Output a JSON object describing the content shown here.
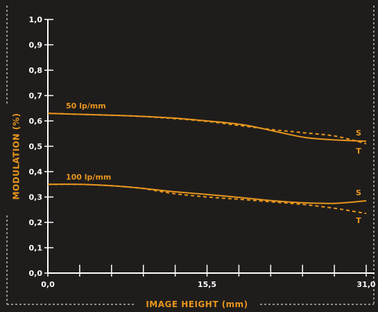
{
  "chart_data": {
    "type": "line",
    "xlabel": "IMAGE HEIGHT (mm)",
    "ylabel": "MODULATION (%)",
    "xlim": [
      0,
      31
    ],
    "ylim": [
      0,
      1
    ],
    "x_tick_labels": [
      "0,0",
      "15,5",
      "31,0"
    ],
    "x_tick_values": [
      0,
      15.5,
      31
    ],
    "x_minor_tick_count": 10,
    "y_tick_labels": [
      "0,0",
      "0,1",
      "0,2",
      "0,3",
      "0,4",
      "0,5",
      "0,6",
      "0,7",
      "0,8",
      "0,9",
      "1,0"
    ],
    "y_tick_values": [
      0,
      0.1,
      0.2,
      0.3,
      0.4,
      0.5,
      0.6,
      0.7,
      0.8,
      0.9,
      1.0
    ],
    "grid": false,
    "colors": {
      "background": "#1f1d1c",
      "axes": "#ffffff",
      "curves": "#e8961e",
      "frame": "#ffffff"
    },
    "series_groups": [
      {
        "name": "50 lp/mm",
        "curves": [
          {
            "name": "S",
            "style": "solid",
            "x": [
              0,
              4,
              8,
              12,
              15.5,
              19,
              22,
              25,
              28,
              31
            ],
            "y": [
              0.63,
              0.625,
              0.62,
              0.612,
              0.6,
              0.585,
              0.56,
              0.535,
              0.525,
              0.52
            ]
          },
          {
            "name": "T",
            "style": "dashed",
            "x": [
              0,
              4,
              8,
              12,
              15.5,
              19,
              22,
              25,
              28,
              31
            ],
            "y": [
              0.63,
              0.625,
              0.62,
              0.61,
              0.598,
              0.58,
              0.565,
              0.553,
              0.54,
              0.51
            ]
          }
        ]
      },
      {
        "name": "100 lp/mm",
        "curves": [
          {
            "name": "S",
            "style": "solid",
            "x": [
              0,
              3,
              6,
              9,
              12,
              15.5,
              19,
              22,
              25,
              28,
              31
            ],
            "y": [
              0.35,
              0.35,
              0.345,
              0.335,
              0.322,
              0.31,
              0.297,
              0.285,
              0.277,
              0.275,
              0.285
            ]
          },
          {
            "name": "T",
            "style": "dashed",
            "x": [
              0,
              3,
              6,
              9,
              12,
              15.5,
              19,
              22,
              25,
              28,
              31
            ],
            "y": [
              0.35,
              0.35,
              0.345,
              0.335,
              0.315,
              0.3,
              0.29,
              0.28,
              0.27,
              0.255,
              0.235
            ]
          }
        ]
      }
    ]
  }
}
